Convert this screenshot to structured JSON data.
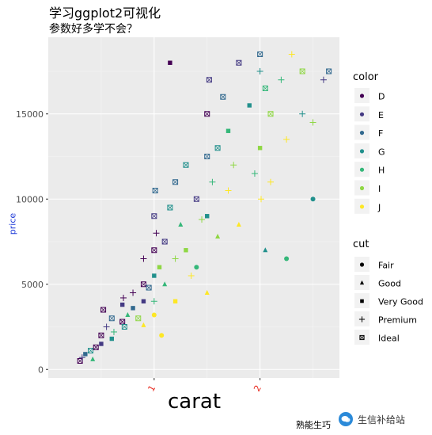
{
  "chart_data": {
    "type": "scatter",
    "title": "学习ggplot2可视化",
    "subtitle": "参数好多学不会？",
    "xlabel": "carat",
    "ylabel": "price",
    "caption": "熟能生巧",
    "xlim": [
      0.0,
      2.75
    ],
    "ylim": [
      -500,
      19500
    ],
    "x_ticks": [
      1,
      2
    ],
    "y_ticks": [
      0,
      5000,
      10000,
      15000
    ],
    "y_tick_labels": [
      "0",
      "5000",
      "10000",
      "15000"
    ],
    "x_tick_labels": [
      "1",
      "2"
    ],
    "grid": true,
    "legend_position": "right",
    "color_legend": {
      "title": "color",
      "levels": [
        "D",
        "E",
        "F",
        "G",
        "H",
        "I",
        "J"
      ],
      "colors": [
        "#440154",
        "#443A83",
        "#31688E",
        "#21908C",
        "#35B779",
        "#8FD744",
        "#FDE725"
      ]
    },
    "shape_legend": {
      "title": "cut",
      "levels": [
        "Fair",
        "Good",
        "Very Good",
        "Premium",
        "Ideal"
      ],
      "shapes": [
        "circle",
        "triangle",
        "square",
        "plus",
        "boxx"
      ]
    },
    "points": [
      {
        "x": 0.3,
        "y": 500,
        "color": "D",
        "cut": "Ideal"
      },
      {
        "x": 0.32,
        "y": 700,
        "color": "E",
        "cut": "Premium"
      },
      {
        "x": 0.35,
        "y": 900,
        "color": "F",
        "cut": "Very Good"
      },
      {
        "x": 0.4,
        "y": 1100,
        "color": "G",
        "cut": "Ideal"
      },
      {
        "x": 0.42,
        "y": 600,
        "color": "H",
        "cut": "Good"
      },
      {
        "x": 0.45,
        "y": 1300,
        "color": "D",
        "cut": "Ideal"
      },
      {
        "x": 0.5,
        "y": 1500,
        "color": "E",
        "cut": "Very Good"
      },
      {
        "x": 0.5,
        "y": 2000,
        "color": "D",
        "cut": "Ideal"
      },
      {
        "x": 0.52,
        "y": 3500,
        "color": "D",
        "cut": "Ideal"
      },
      {
        "x": 0.55,
        "y": 2500,
        "color": "E",
        "cut": "Premium"
      },
      {
        "x": 0.6,
        "y": 3000,
        "color": "F",
        "cut": "Ideal"
      },
      {
        "x": 0.6,
        "y": 1800,
        "color": "G",
        "cut": "Very Good"
      },
      {
        "x": 0.62,
        "y": 2200,
        "color": "H",
        "cut": "Premium"
      },
      {
        "x": 0.7,
        "y": 2800,
        "color": "D",
        "cut": "Ideal"
      },
      {
        "x": 0.7,
        "y": 3800,
        "color": "E",
        "cut": "Very Good"
      },
      {
        "x": 0.71,
        "y": 4200,
        "color": "D",
        "cut": "Premium"
      },
      {
        "x": 0.72,
        "y": 2500,
        "color": "G",
        "cut": "Ideal"
      },
      {
        "x": 0.75,
        "y": 3200,
        "color": "H",
        "cut": "Good"
      },
      {
        "x": 0.8,
        "y": 3600,
        "color": "F",
        "cut": "Very Good"
      },
      {
        "x": 0.8,
        "y": 4500,
        "color": "D",
        "cut": "Premium"
      },
      {
        "x": 0.85,
        "y": 3000,
        "color": "I",
        "cut": "Ideal"
      },
      {
        "x": 0.9,
        "y": 4000,
        "color": "E",
        "cut": "Very Good"
      },
      {
        "x": 0.9,
        "y": 5000,
        "color": "D",
        "cut": "Ideal"
      },
      {
        "x": 0.9,
        "y": 6500,
        "color": "D",
        "cut": "Premium"
      },
      {
        "x": 0.9,
        "y": 2600,
        "color": "J",
        "cut": "Good"
      },
      {
        "x": 0.95,
        "y": 4800,
        "color": "F",
        "cut": "Ideal"
      },
      {
        "x": 1.0,
        "y": 5500,
        "color": "G",
        "cut": "Very Good"
      },
      {
        "x": 1.0,
        "y": 4000,
        "color": "H",
        "cut": "Premium"
      },
      {
        "x": 1.0,
        "y": 7000,
        "color": "D",
        "cut": "Ideal"
      },
      {
        "x": 1.0,
        "y": 9000,
        "color": "E",
        "cut": "Ideal"
      },
      {
        "x": 1.0,
        "y": 3200,
        "color": "J",
        "cut": "Fair"
      },
      {
        "x": 1.01,
        "y": 10500,
        "color": "F",
        "cut": "Ideal"
      },
      {
        "x": 1.02,
        "y": 8000,
        "color": "D",
        "cut": "Premium"
      },
      {
        "x": 1.05,
        "y": 6000,
        "color": "I",
        "cut": "Very Good"
      },
      {
        "x": 1.07,
        "y": 2000,
        "color": "J",
        "cut": "Fair"
      },
      {
        "x": 1.1,
        "y": 7500,
        "color": "E",
        "cut": "Ideal"
      },
      {
        "x": 1.1,
        "y": 5000,
        "color": "H",
        "cut": "Good"
      },
      {
        "x": 1.15,
        "y": 9500,
        "color": "G",
        "cut": "Ideal"
      },
      {
        "x": 1.15,
        "y": 18000,
        "color": "D",
        "cut": "Very Good"
      },
      {
        "x": 1.2,
        "y": 11000,
        "color": "F",
        "cut": "Ideal"
      },
      {
        "x": 1.2,
        "y": 6500,
        "color": "I",
        "cut": "Premium"
      },
      {
        "x": 1.2,
        "y": 4000,
        "color": "J",
        "cut": "Very Good"
      },
      {
        "x": 1.25,
        "y": 8500,
        "color": "H",
        "cut": "Good"
      },
      {
        "x": 1.3,
        "y": 12000,
        "color": "G",
        "cut": "Ideal"
      },
      {
        "x": 1.3,
        "y": 7000,
        "color": "I",
        "cut": "Very Good"
      },
      {
        "x": 1.35,
        "y": 5500,
        "color": "J",
        "cut": "Premium"
      },
      {
        "x": 1.4,
        "y": 10000,
        "color": "E",
        "cut": "Ideal"
      },
      {
        "x": 1.4,
        "y": 6000,
        "color": "H",
        "cut": "Fair"
      },
      {
        "x": 1.45,
        "y": 8800,
        "color": "I",
        "cut": "Premium"
      },
      {
        "x": 1.5,
        "y": 12500,
        "color": "F",
        "cut": "Ideal"
      },
      {
        "x": 1.5,
        "y": 9000,
        "color": "G",
        "cut": "Very Good"
      },
      {
        "x": 1.5,
        "y": 4500,
        "color": "J",
        "cut": "Good"
      },
      {
        "x": 1.5,
        "y": 15000,
        "color": "D",
        "cut": "Ideal"
      },
      {
        "x": 1.52,
        "y": 17000,
        "color": "E",
        "cut": "Ideal"
      },
      {
        "x": 1.55,
        "y": 11000,
        "color": "H",
        "cut": "Premium"
      },
      {
        "x": 1.6,
        "y": 13000,
        "color": "G",
        "cut": "Ideal"
      },
      {
        "x": 1.6,
        "y": 7800,
        "color": "I",
        "cut": "Good"
      },
      {
        "x": 1.65,
        "y": 16000,
        "color": "F",
        "cut": "Ideal"
      },
      {
        "x": 1.7,
        "y": 10500,
        "color": "J",
        "cut": "Premium"
      },
      {
        "x": 1.7,
        "y": 14000,
        "color": "H",
        "cut": "Very Good"
      },
      {
        "x": 1.75,
        "y": 12000,
        "color": "I",
        "cut": "Premium"
      },
      {
        "x": 1.8,
        "y": 18000,
        "color": "E",
        "cut": "Ideal"
      },
      {
        "x": 1.8,
        "y": 8500,
        "color": "J",
        "cut": "Good"
      },
      {
        "x": 1.9,
        "y": 15500,
        "color": "G",
        "cut": "Very Good"
      },
      {
        "x": 1.95,
        "y": 11500,
        "color": "H",
        "cut": "Premium"
      },
      {
        "x": 2.0,
        "y": 18500,
        "color": "F",
        "cut": "Ideal"
      },
      {
        "x": 2.0,
        "y": 17500,
        "color": "G",
        "cut": "Premium"
      },
      {
        "x": 2.0,
        "y": 13000,
        "color": "I",
        "cut": "Very Good"
      },
      {
        "x": 2.01,
        "y": 10000,
        "color": "J",
        "cut": "Premium"
      },
      {
        "x": 2.05,
        "y": 16500,
        "color": "H",
        "cut": "Ideal"
      },
      {
        "x": 2.05,
        "y": 7000,
        "color": "G",
        "cut": "Good"
      },
      {
        "x": 2.1,
        "y": 15000,
        "color": "I",
        "cut": "Ideal"
      },
      {
        "x": 2.1,
        "y": 11000,
        "color": "J",
        "cut": "Premium"
      },
      {
        "x": 2.2,
        "y": 17000,
        "color": "H",
        "cut": "Premium"
      },
      {
        "x": 2.25,
        "y": 13500,
        "color": "J",
        "cut": "Premium"
      },
      {
        "x": 2.25,
        "y": 6500,
        "color": "H",
        "cut": "Fair"
      },
      {
        "x": 2.3,
        "y": 18500,
        "color": "J",
        "cut": "Premium"
      },
      {
        "x": 2.4,
        "y": 15000,
        "color": "G",
        "cut": "Premium"
      },
      {
        "x": 2.4,
        "y": 17500,
        "color": "I",
        "cut": "Ideal"
      },
      {
        "x": 2.5,
        "y": 14500,
        "color": "I",
        "cut": "Premium"
      },
      {
        "x": 2.5,
        "y": 10000,
        "color": "G",
        "cut": "Fair"
      },
      {
        "x": 2.6,
        "y": 17000,
        "color": "E",
        "cut": "Premium"
      },
      {
        "x": 2.65,
        "y": 17500,
        "color": "F",
        "cut": "Ideal"
      }
    ]
  },
  "watermark": {
    "text": "生信补给站"
  }
}
